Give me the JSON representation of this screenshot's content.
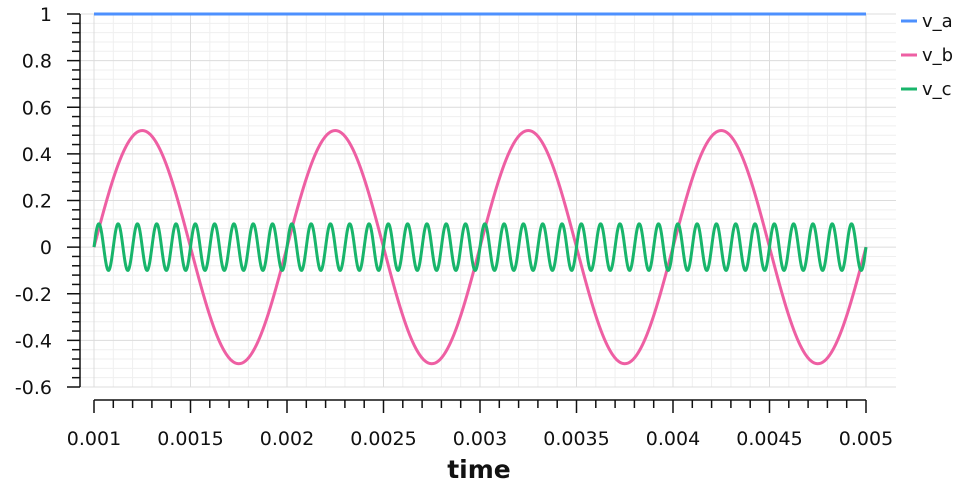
{
  "chart_data": {
    "type": "line",
    "xlabel": "time",
    "ylabel": "",
    "xlim": [
      0.001,
      0.005
    ],
    "ylim": [
      -0.6,
      1
    ],
    "x_ticks": [
      "0.001",
      "0.0015",
      "0.002",
      "0.0025",
      "0.003",
      "0.0035",
      "0.004",
      "0.0045",
      "0.005"
    ],
    "y_ticks": [
      "1",
      "0.8",
      "0.6",
      "0.4",
      "0.2",
      "0",
      "-0.2",
      "-0.4",
      "-0.6"
    ],
    "grid": true,
    "legend_position": "top-right",
    "series": [
      {
        "name": "v_a",
        "color": "#4d90fe",
        "function": "constant",
        "value": 1
      },
      {
        "name": "v_b",
        "color": "#ee5fa3",
        "function": "sine",
        "amplitude": 0.5,
        "frequency_hz": 1000,
        "phase": 0
      },
      {
        "name": "v_c",
        "color": "#18b56b",
        "function": "sine",
        "amplitude": 0.1,
        "frequency_hz": 10000,
        "phase": 0
      }
    ]
  }
}
